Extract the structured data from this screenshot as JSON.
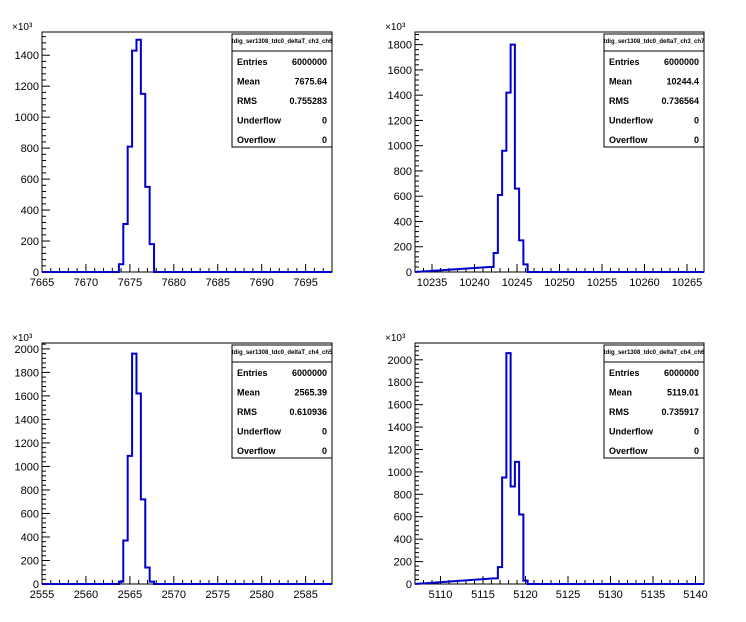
{
  "colors": {
    "histogram": "#0000cc",
    "axis": "#000000",
    "background": "#ffffff"
  },
  "chart_data": [
    {
      "type": "histogram",
      "title": "tdig_ser1308_tdc0_deltaT_ch3_ch6",
      "x_range": [
        7665,
        7698
      ],
      "x_ticks": [
        7665,
        7670,
        7675,
        7680,
        7685,
        7690,
        7695
      ],
      "y_range": [
        0,
        1550
      ],
      "y_ticks": [
        0,
        200,
        400,
        600,
        800,
        1000,
        1200,
        1400
      ],
      "y_exponent": "×10³",
      "y_unit_multiplier": 1000,
      "bin_width": 0.5,
      "bins": [
        {
          "x": 7673.5,
          "y": 0
        },
        {
          "x": 7674.0,
          "y": 50
        },
        {
          "x": 7674.5,
          "y": 310
        },
        {
          "x": 7675.0,
          "y": 810
        },
        {
          "x": 7675.5,
          "y": 1430
        },
        {
          "x": 7676.0,
          "y": 1500
        },
        {
          "x": 7676.5,
          "y": 1150
        },
        {
          "x": 7677.0,
          "y": 550
        },
        {
          "x": 7677.5,
          "y": 180
        },
        {
          "x": 7678.0,
          "y": 0
        }
      ],
      "stats": {
        "Entries": "6000000",
        "Mean": "7675.64",
        "RMS": "0.755283",
        "Underflow": "0",
        "Overflow": "0"
      }
    },
    {
      "type": "histogram",
      "title": "tdig_ser1308_tdc0_deltaT_ch3_ch7",
      "x_range": [
        10233,
        10267
      ],
      "x_ticks": [
        10235,
        10240,
        10245,
        10250,
        10255,
        10260,
        10265
      ],
      "y_range": [
        0,
        1900
      ],
      "y_ticks": [
        0,
        200,
        400,
        600,
        800,
        1000,
        1200,
        1400,
        1600,
        1800
      ],
      "y_exponent": "×10³",
      "y_unit_multiplier": 1000,
      "bin_width": 0.5,
      "bins": [
        {
          "x": 10242.0,
          "y": 40
        },
        {
          "x": 10242.5,
          "y": 150
        },
        {
          "x": 10243.0,
          "y": 610
        },
        {
          "x": 10243.5,
          "y": 960
        },
        {
          "x": 10244.0,
          "y": 1420
        },
        {
          "x": 10244.5,
          "y": 1800
        },
        {
          "x": 10245.0,
          "y": 660
        },
        {
          "x": 10245.5,
          "y": 250
        },
        {
          "x": 10246.0,
          "y": 60
        },
        {
          "x": 10246.5,
          "y": 0
        }
      ],
      "stats": {
        "Entries": "6000000",
        "Mean": "10244.4",
        "RMS": "0.736564",
        "Underflow": "0",
        "Overflow": "0"
      }
    },
    {
      "type": "histogram",
      "title": "tdig_ser1308_tdc0_deltaT_ch4_ch5",
      "x_range": [
        2555,
        2588
      ],
      "x_ticks": [
        2555,
        2560,
        2565,
        2570,
        2575,
        2580,
        2585
      ],
      "y_range": [
        0,
        2050
      ],
      "y_ticks": [
        0,
        200,
        400,
        600,
        800,
        1000,
        1200,
        1400,
        1600,
        1800,
        2000
      ],
      "y_exponent": "×10³",
      "y_unit_multiplier": 1000,
      "bin_width": 0.5,
      "bins": [
        {
          "x": 2563.5,
          "y": 0
        },
        {
          "x": 2564.0,
          "y": 20
        },
        {
          "x": 2564.5,
          "y": 370
        },
        {
          "x": 2565.0,
          "y": 1090
        },
        {
          "x": 2565.5,
          "y": 1960
        },
        {
          "x": 2566.0,
          "y": 1620
        },
        {
          "x": 2566.5,
          "y": 720
        },
        {
          "x": 2567.0,
          "y": 140
        },
        {
          "x": 2567.5,
          "y": 20
        },
        {
          "x": 2568.0,
          "y": 0
        }
      ],
      "stats": {
        "Entries": "6000000",
        "Mean": "2565.39",
        "RMS": "0.610936",
        "Underflow": "0",
        "Overflow": "0"
      }
    },
    {
      "type": "histogram",
      "title": "tdig_ser1308_tdc0_deltaT_ch4_ch6",
      "x_range": [
        5107,
        5141
      ],
      "x_ticks": [
        5110,
        5115,
        5120,
        5125,
        5130,
        5135,
        5140
      ],
      "y_range": [
        0,
        2150
      ],
      "y_ticks": [
        0,
        200,
        400,
        600,
        800,
        1000,
        1200,
        1400,
        1600,
        1800,
        2000
      ],
      "y_exponent": "×10³",
      "y_unit_multiplier": 1000,
      "bin_width": 0.5,
      "bins": [
        {
          "x": 5116.5,
          "y": 50
        },
        {
          "x": 5117.0,
          "y": 150
        },
        {
          "x": 5117.5,
          "y": 950
        },
        {
          "x": 5118.0,
          "y": 2060
        },
        {
          "x": 5118.5,
          "y": 870
        },
        {
          "x": 5119.0,
          "y": 1090
        },
        {
          "x": 5119.5,
          "y": 620
        },
        {
          "x": 5120.0,
          "y": 30
        },
        {
          "x": 5120.5,
          "y": 0
        }
      ],
      "stats": {
        "Entries": "6000000",
        "Mean": "5119.01",
        "RMS": "0.735917",
        "Underflow": "0",
        "Overflow": "0"
      }
    }
  ]
}
